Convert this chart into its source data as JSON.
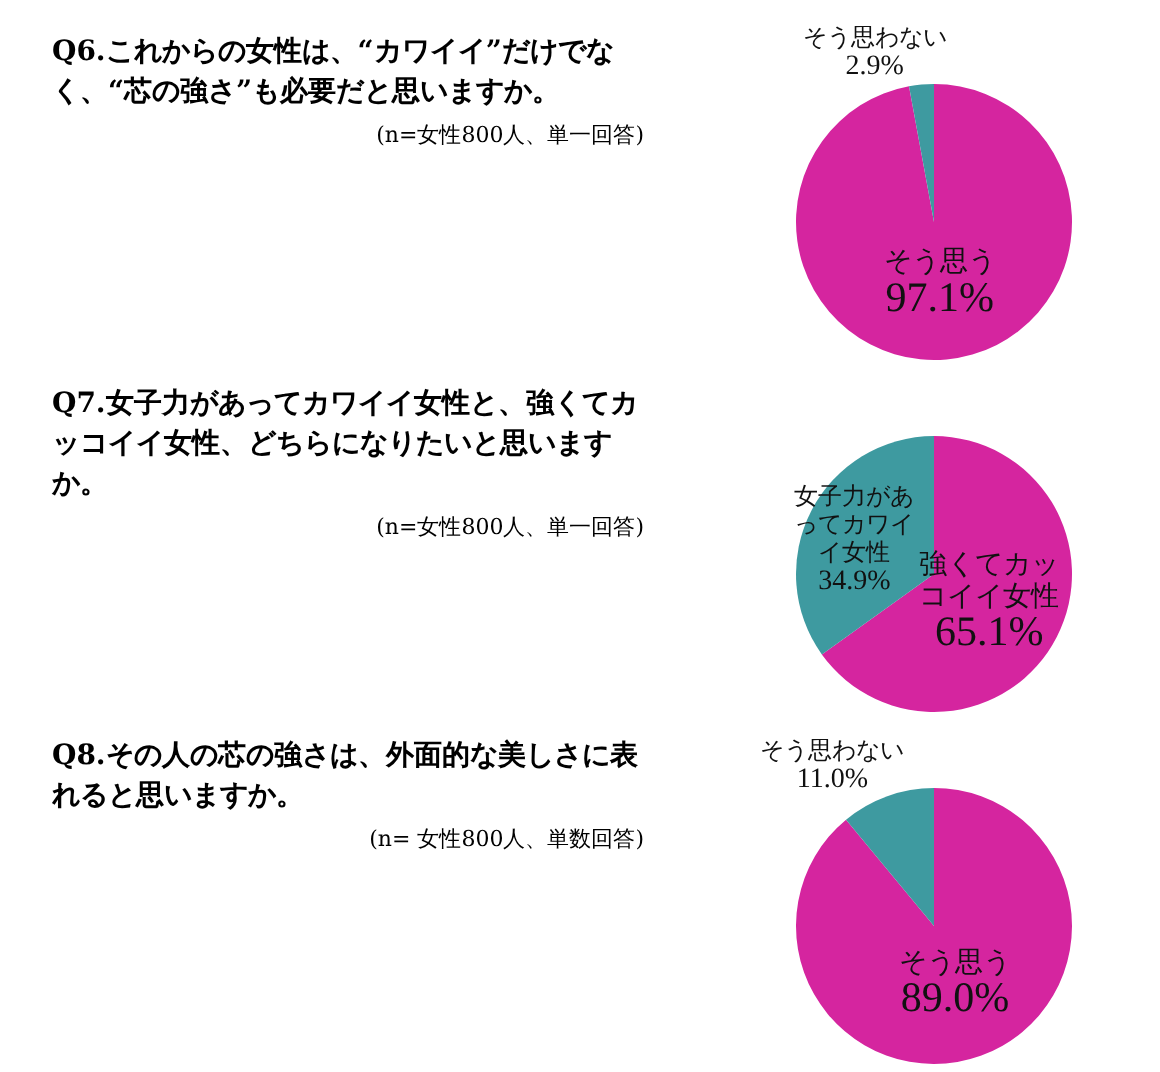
{
  "chart_data": [
    {
      "type": "pie",
      "title": "Q6.これからの女性は、“カワイイ”だけでなく、“芯の強さ”も必要だと思いますか。",
      "annotations": [
        "(n=女性800人、単一回答)"
      ],
      "categories": [
        "そう思う",
        "そう思わない"
      ],
      "values": [
        97.1,
        2.9
      ],
      "value_labels": [
        "97.1%",
        "2.9%"
      ],
      "colors": [
        "#d5259f",
        "#3e9aa0"
      ],
      "legend": false
    },
    {
      "type": "pie",
      "title": "Q7.女子力があってカワイイ女性と、強くてカッコイイ女性、どちらになりたいと思いますか。",
      "annotations": [
        "(n=女性800人、単一回答)"
      ],
      "categories": [
        "強くてカッコイイ女性",
        "女子力があってカワイイ女性"
      ],
      "values": [
        65.1,
        34.9
      ],
      "value_labels": [
        "65.1%",
        "34.9%"
      ],
      "colors": [
        "#d5259f",
        "#3e9aa0"
      ],
      "legend": false
    },
    {
      "type": "pie",
      "title": "Q8.その人の芯の強さは、外面的な美しさに表れると思いますか。",
      "annotations": [
        "(n= 女性800人、単数回答)"
      ],
      "categories": [
        "そう思う",
        "そう思わない"
      ],
      "values": [
        89.0,
        11.0
      ],
      "value_labels": [
        "89.0%",
        "11.0%"
      ],
      "colors": [
        "#d5259f",
        "#3e9aa0"
      ],
      "legend": false
    }
  ]
}
